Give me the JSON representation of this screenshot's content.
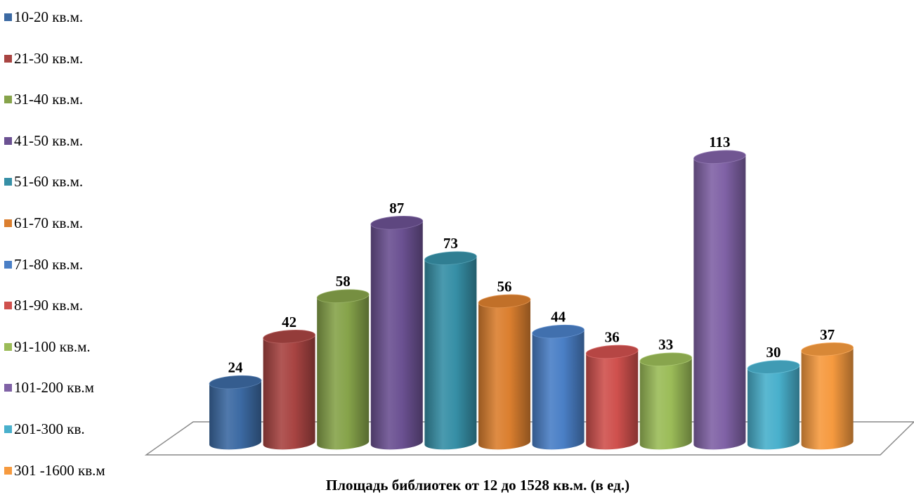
{
  "chart_data": {
    "type": "bar",
    "title": "Площадь библиотек от 12  до 1528 кв.м. (в ед.)",
    "categories": [
      "10-20 кв.м.",
      "21-30 кв.м.",
      "31-40 кв.м.",
      "41-50 кв.м.",
      "51-60 кв.м.",
      "61-70 кв.м.",
      "71-80 кв.м.",
      "81-90 кв.м.",
      "91-100 кв.м.",
      "101-200 кв.м",
      "201-300 кв.",
      "301 -1600 кв.м"
    ],
    "values": [
      24,
      42,
      58,
      87,
      73,
      56,
      44,
      36,
      33,
      113,
      30,
      37
    ],
    "colors": [
      "#3c6aa3",
      "#a84442",
      "#86a34a",
      "#6b5192",
      "#368fa6",
      "#db7f2f",
      "#4a7fc6",
      "#cf504d",
      "#9bbc58",
      "#8062a6",
      "#49b0cc",
      "#f69a3f"
    ],
    "legend_position": "left",
    "grid": false,
    "xlabel": "",
    "ylabel": ""
  }
}
